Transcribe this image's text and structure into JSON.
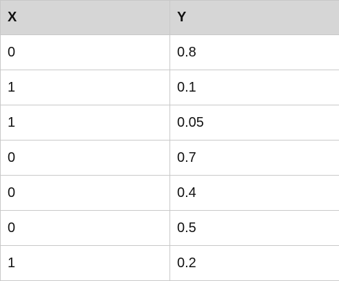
{
  "table": {
    "headers": [
      "X",
      "Y"
    ],
    "rows": [
      [
        "0",
        "0.8"
      ],
      [
        "1",
        "0.1"
      ],
      [
        "1",
        "0.05"
      ],
      [
        "0",
        "0.7"
      ],
      [
        "0",
        "0.4"
      ],
      [
        "0",
        "0.5"
      ],
      [
        "1",
        "0.2"
      ]
    ]
  },
  "colors": {
    "header_background": "#d6d6d6",
    "grid_line": "#c8c8c8",
    "text": "#111111"
  }
}
